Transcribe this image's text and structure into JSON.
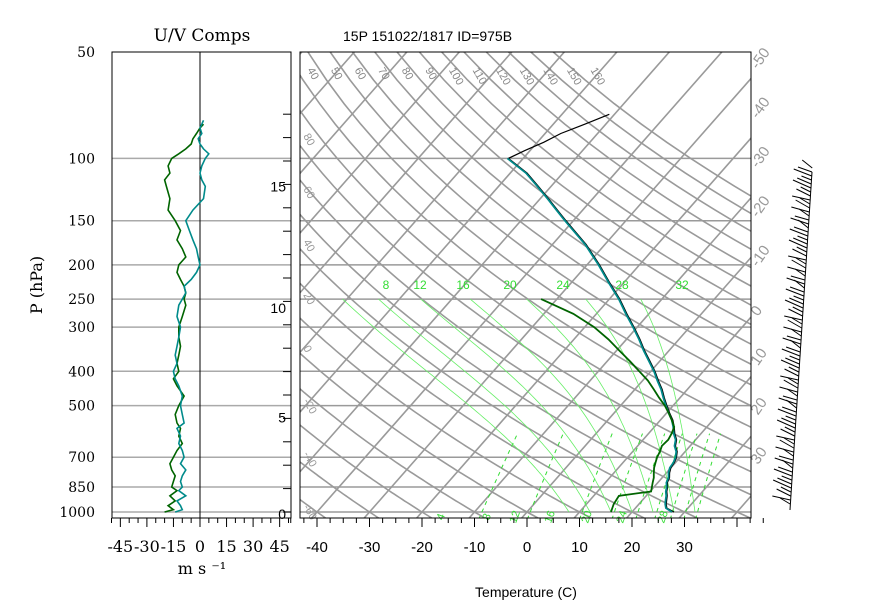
{
  "chart_data": [
    {
      "type": "line",
      "title": "U/V Comps",
      "ylabel": "P (hPa)",
      "xlabel": "m s ⁻¹",
      "ylim": [
        1000,
        50
      ],
      "xlim": [
        -50,
        50
      ],
      "y_scale": "log",
      "yticks": [
        50,
        100,
        150,
        200,
        250,
        300,
        400,
        500,
        700,
        850,
        1000
      ],
      "xticks": [
        "-45",
        "-30",
        "-15",
        "0",
        "15",
        "30",
        "45"
      ],
      "xtick_values": [
        -45,
        -30,
        -15,
        0,
        15,
        30,
        45
      ],
      "grid": true,
      "series": [
        {
          "color": "#006400",
          "pressure": [
            1000,
            985,
            960,
            930,
            900,
            870,
            850,
            820,
            790,
            760,
            730,
            700,
            670,
            640,
            610,
            580,
            560,
            530,
            500,
            470,
            440,
            420,
            400,
            380,
            360,
            340,
            320,
            300,
            280,
            260,
            250,
            240,
            230,
            220,
            210,
            200,
            190,
            180,
            170,
            160,
            150,
            140,
            130,
            120,
            115,
            110,
            105,
            100,
            97,
            94,
            91,
            88,
            85,
            82,
            80
          ],
          "values": [
            -20,
            -15,
            -18,
            -14,
            -17,
            -13,
            -16,
            -15,
            -14,
            -16,
            -17,
            -15,
            -13,
            -10,
            -12,
            -11,
            -13,
            -14,
            -12,
            -9,
            -13,
            -15,
            -12,
            -13,
            -12,
            -11,
            -12,
            -12,
            -10,
            -8,
            -9,
            -8,
            -9,
            -11,
            -13,
            -12,
            -8,
            -10,
            -13,
            -11,
            -14,
            -18,
            -17,
            -19,
            -20,
            -17,
            -18,
            -16,
            -12,
            -8,
            -5,
            -4,
            -2,
            0,
            2
          ]
        },
        {
          "color": "#008b8b",
          "pressure": [
            1000,
            985,
            960,
            930,
            900,
            870,
            850,
            820,
            790,
            760,
            730,
            700,
            670,
            640,
            610,
            580,
            560,
            530,
            500,
            470,
            440,
            420,
            400,
            380,
            360,
            340,
            320,
            300,
            280,
            260,
            250,
            240,
            230,
            220,
            210,
            200,
            190,
            180,
            170,
            160,
            150,
            140,
            130,
            120,
            115,
            110,
            105,
            100,
            97,
            94,
            91,
            88,
            85,
            82,
            80,
            78
          ],
          "values": [
            -14,
            -10,
            -11,
            -13,
            -8,
            -12,
            -10,
            -11,
            -10,
            -8,
            -11,
            -9,
            -10,
            -12,
            -11,
            -13,
            -9,
            -10,
            -11,
            -10,
            -12,
            -14,
            -15,
            -13,
            -14,
            -13,
            -12,
            -11,
            -13,
            -12,
            -10,
            -8,
            -9,
            -5,
            -2,
            0,
            -1,
            -2,
            -4,
            -6,
            -8,
            -4,
            2,
            3,
            1,
            0,
            1,
            3,
            5,
            2,
            0,
            -1,
            1,
            0,
            1,
            2
          ]
        }
      ]
    },
    {
      "type": "line",
      "title": "15P 151022/1817 ID=975B",
      "xlabel": "Temperature (C)",
      "xlim": [
        -45,
        45
      ],
      "ylim": [
        1000,
        50
      ],
      "y_scale": "log",
      "xticks": [
        "-40",
        "-30",
        "-20",
        "-10",
        "0",
        "10",
        "20",
        "30"
      ],
      "xtick_values": [
        -40,
        -30,
        -20,
        -10,
        0,
        10,
        20,
        30
      ],
      "height_ticks": [
        "0",
        "5",
        "10",
        "15"
      ],
      "height_tick_pressures": [
        1013,
        540,
        265,
        120
      ],
      "mixing_ratio_labels": [
        "8",
        "12",
        "16",
        "20",
        "24",
        "28",
        "32"
      ],
      "mixing_ratio_bottom_labels": [
        "4",
        "8",
        "12",
        "16",
        "20",
        "24",
        "28"
      ],
      "theta_e_labels": [
        "40",
        "50",
        "60",
        "70",
        "80",
        "90",
        "100",
        "110",
        "120",
        "130",
        "140",
        "150",
        "160"
      ],
      "theta_labels": [
        "-50",
        "-40",
        "-30",
        "-20",
        "-10",
        "0",
        "10",
        "20",
        "30"
      ],
      "left_labels": [
        "80",
        "60",
        "40",
        "20",
        "0",
        "-20",
        "-40",
        "-60"
      ],
      "grid": true,
      "series": [
        {
          "color": "#000000",
          "pressure": [
            1000,
            975,
            950,
            925,
            900,
            875,
            850,
            825,
            800,
            775,
            750,
            725,
            700,
            675,
            650,
            625,
            600,
            575,
            550,
            525,
            500,
            475,
            450,
            425,
            400,
            375,
            350,
            325,
            300,
            275,
            250,
            225,
            200,
            175,
            150,
            140,
            130,
            120,
            110,
            100,
            95,
            90,
            85,
            80,
            75
          ],
          "values": [
            28,
            26,
            25.2,
            24.6,
            24,
            23.2,
            22.6,
            21.8,
            21.4,
            20.6,
            20,
            19.8,
            19.3,
            18.5,
            17.2,
            16.4,
            15,
            13.8,
            12.4,
            10.6,
            8.8,
            7,
            5.2,
            3,
            0.8,
            -1.8,
            -4.6,
            -7.4,
            -10.6,
            -14.2,
            -18,
            -22.6,
            -27.6,
            -33.6,
            -41.4,
            -44.8,
            -48.4,
            -52.4,
            -56.8,
            -62.8,
            -61,
            -58.8,
            -57,
            -54,
            -51
          ]
        },
        {
          "color": "#008b8b",
          "pressure": [
            1000,
            975,
            950,
            925,
            900,
            875,
            850,
            825,
            800,
            775,
            750,
            725,
            700,
            675,
            650,
            625,
            600,
            575,
            550,
            525,
            500,
            475,
            450,
            425,
            400,
            375,
            350,
            325,
            300,
            275,
            250,
            225,
            200,
            175,
            150,
            140,
            130,
            120,
            110,
            100
          ],
          "values": [
            27.6,
            25.8,
            25,
            24.4,
            23.8,
            23,
            22.4,
            21.6,
            21.2,
            20.4,
            19.8,
            19.6,
            19.1,
            18.3,
            17,
            16.2,
            14.8,
            13.6,
            12.2,
            10.4,
            8.6,
            6.8,
            5,
            2.8,
            0.6,
            -2,
            -4.8,
            -7.6,
            -10.8,
            -14.4,
            -18.2,
            -22.8,
            -27.8,
            -33.8,
            -41.6,
            -45,
            -48.6,
            -52.6,
            -57,
            -63
          ]
        },
        {
          "color": "#006400",
          "pressure": [
            1000,
            975,
            950,
            925,
            900,
            875,
            850,
            825,
            800,
            775,
            750,
            725,
            700,
            675,
            650,
            625,
            600,
            575,
            550,
            525,
            500,
            475,
            450,
            425,
            400,
            375,
            350,
            325,
            300,
            275,
            250
          ],
          "values": [
            16,
            15.6,
            15.2,
            15,
            14.8,
            20.2,
            19.6,
            19,
            18.4,
            17.6,
            16.8,
            16.2,
            15.6,
            15.2,
            14.6,
            14.8,
            14.4,
            13.8,
            12.2,
            10.4,
            8.4,
            6,
            3.6,
            1,
            -2.2,
            -5.6,
            -9.4,
            -13.4,
            -18.2,
            -24.4,
            -33
          ]
        }
      ]
    }
  ]
}
